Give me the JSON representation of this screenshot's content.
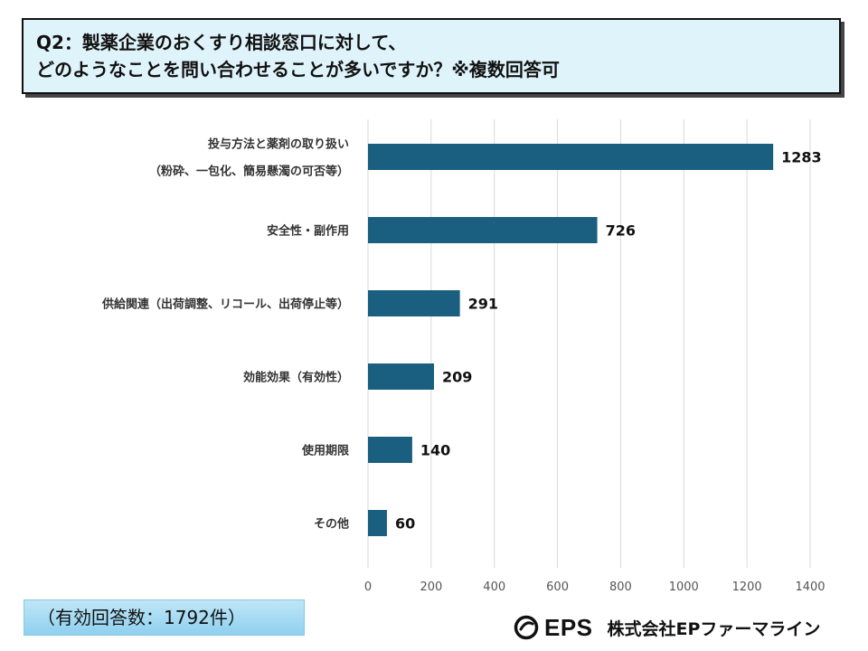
{
  "question": {
    "line1": "Q2：製薬企業のおくすり相談窓口に対して、",
    "line2": "どのようなことを問い合わせることが多いですか？※複数回答可"
  },
  "chart_data": {
    "type": "bar",
    "orientation": "horizontal",
    "categories": [
      [
        "投与方法と薬剤の取り扱い",
        "（粉砕、一包化、簡易懸濁の可否等）"
      ],
      [
        "安全性・副作用"
      ],
      [
        "供給関連（出荷調整、リコール、出荷停止等）"
      ],
      [
        "効能効果（有効性）"
      ],
      [
        "使用期限"
      ],
      [
        "その他"
      ]
    ],
    "values": [
      1283,
      726,
      291,
      209,
      140,
      60
    ],
    "xlim": [
      0,
      1400
    ],
    "xticks": [
      0,
      200,
      400,
      600,
      800,
      1000,
      1200,
      1400
    ],
    "grid": true,
    "bar_color": "#1a5f80",
    "data_labels": true
  },
  "footer": {
    "respondents": "（有効回答数：1792件）"
  },
  "brand": {
    "logo_icon": "eps-logo-icon",
    "eps": "EPS",
    "company": "株式会社EPファーマライン"
  }
}
